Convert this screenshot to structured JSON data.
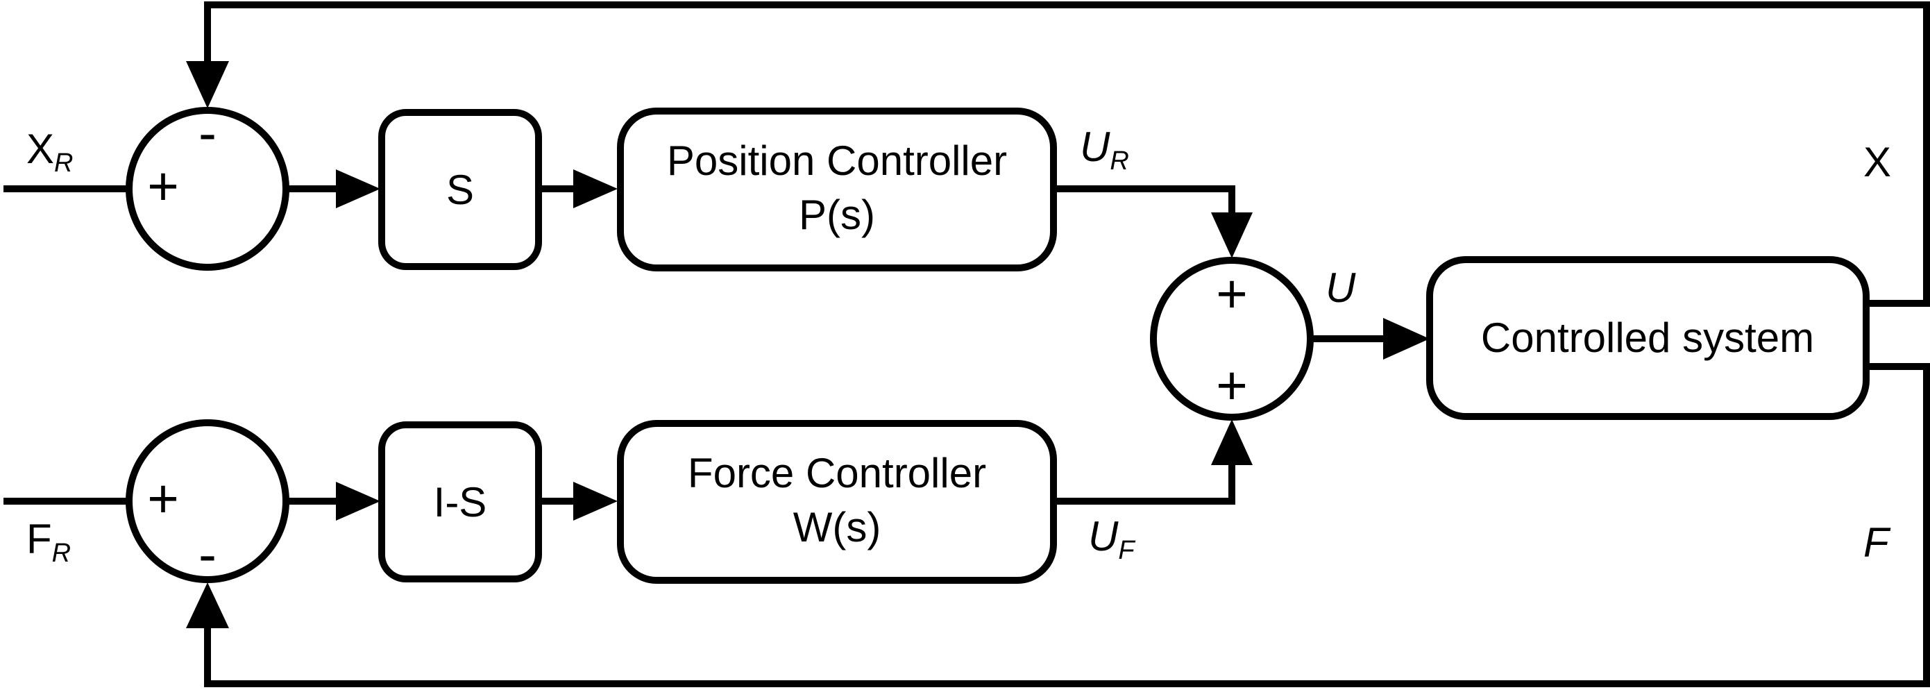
{
  "blocks": {
    "s": {
      "line1": "S"
    },
    "is": {
      "line1": "I-S"
    },
    "position_controller": {
      "line1": "Position Controller",
      "line2": "P(s)"
    },
    "force_controller": {
      "line1": "Force Controller",
      "line2": "W(s)"
    },
    "controlled_system": {
      "line1": "Controlled system"
    }
  },
  "junctions": {
    "position_sum": {
      "plus": "+",
      "minus": "-"
    },
    "force_sum": {
      "plus": "+",
      "minus": "-"
    },
    "output_sum": {
      "plus_top": "+",
      "plus_bottom": "+"
    }
  },
  "signals": {
    "x_ref": {
      "main": "X",
      "sub": "R"
    },
    "f_ref": {
      "main": "F",
      "sub": "R"
    },
    "u_r": {
      "main": "U",
      "sub": "R"
    },
    "u_f": {
      "main": "U",
      "sub": "F"
    },
    "u": {
      "main": "U"
    },
    "x": {
      "main": "X"
    },
    "f": {
      "main": "F"
    }
  }
}
